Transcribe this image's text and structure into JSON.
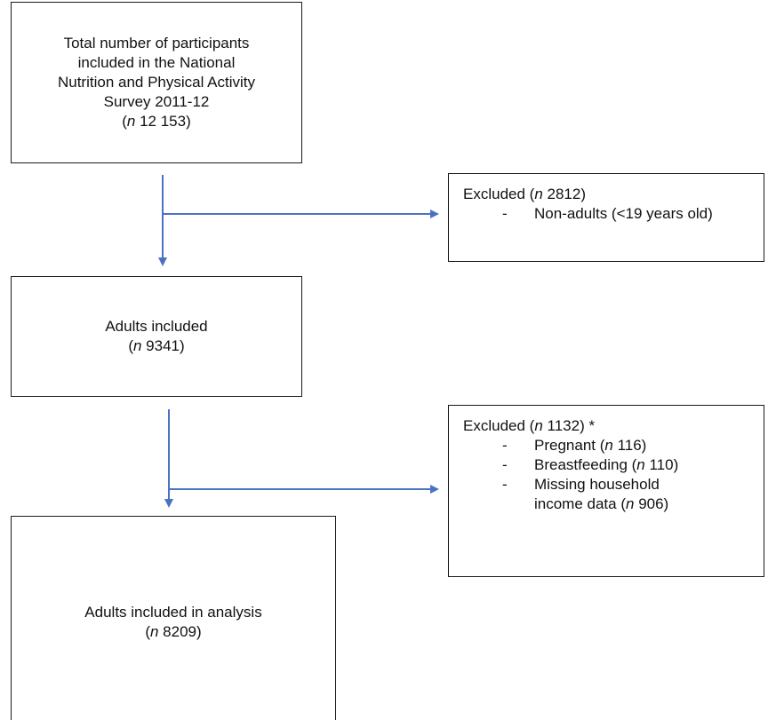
{
  "boxes": {
    "total": {
      "lines": [
        "Total number of participants",
        "included in the National",
        "Nutrition and Physical Activity",
        "Survey 2011-12"
      ],
      "n_label": "n",
      "n_value": " 12 153"
    },
    "adults": {
      "lines": [
        "Adults included"
      ],
      "n_label": "n",
      "n_value": " 9341"
    },
    "analysis": {
      "lines": [
        "Adults included in analysis"
      ],
      "n_label": "n",
      "n_value": " 8209"
    }
  },
  "exclusions": {
    "first": {
      "title_prefix": "Excluded (",
      "n_label": "n",
      "title_value": " 2812)",
      "title_suffix": "",
      "items": [
        {
          "dash": "-",
          "lines": [
            "Non-adults (<19 years old)"
          ],
          "n_label": "",
          "n_value": ""
        }
      ]
    },
    "second": {
      "title_prefix": "Excluded (",
      "n_label": "n",
      "title_value": " 1132)",
      "title_suffix": " *",
      "items": [
        {
          "dash": "-",
          "text": "Pregnant (",
          "n_label": "n",
          "n_value": " 116)"
        },
        {
          "dash": "-",
          "text": "Breastfeeding (",
          "n_label": "n",
          "n_value": " 110)"
        },
        {
          "dash": "-",
          "text": "Missing household",
          "text2": "income data (",
          "n_label": "n",
          "n_value": " 906)"
        }
      ]
    }
  },
  "colors": {
    "arrow": "#4a72c4",
    "border": "#1a1a1a"
  }
}
